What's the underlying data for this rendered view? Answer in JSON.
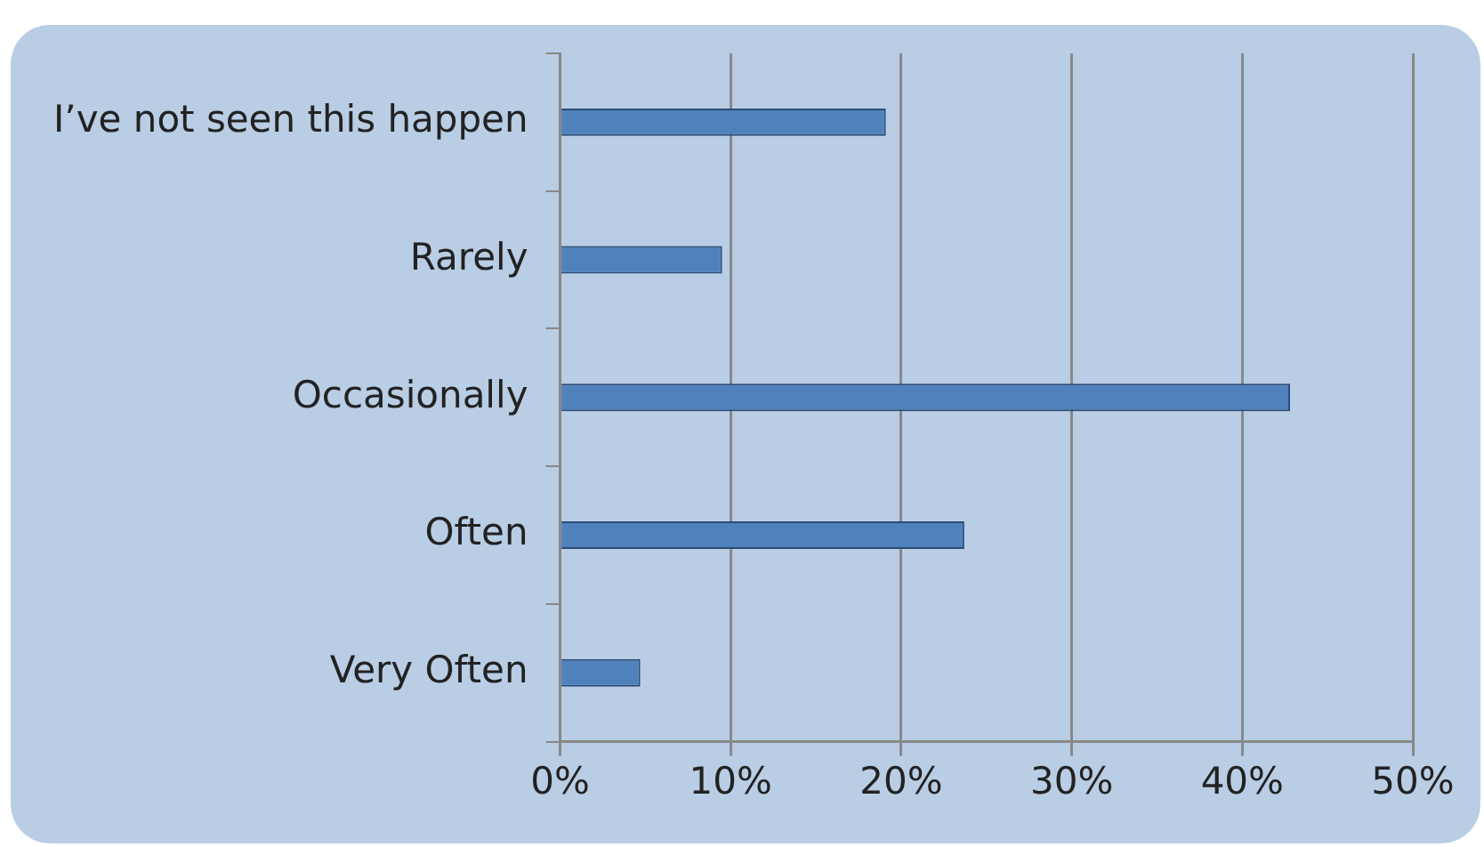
{
  "chart_data": {
    "type": "bar",
    "orientation": "horizontal",
    "categories": [
      "I’ve not seen this happen",
      "Rarely",
      "Occasionally",
      "Often",
      "Very Often"
    ],
    "values": [
      19.1,
      9.5,
      42.8,
      23.7,
      4.7
    ],
    "color": "#4f81bd",
    "xlim": [
      0,
      50
    ],
    "xticks": [
      {
        "value": 0,
        "label": "0%"
      },
      {
        "value": 10,
        "label": "10%"
      },
      {
        "value": 20,
        "label": "20%"
      },
      {
        "value": 30,
        "label": "30%"
      },
      {
        "value": 40,
        "label": "40%"
      },
      {
        "value": 50,
        "label": "50%"
      }
    ],
    "grid": "x",
    "legend": false
  }
}
